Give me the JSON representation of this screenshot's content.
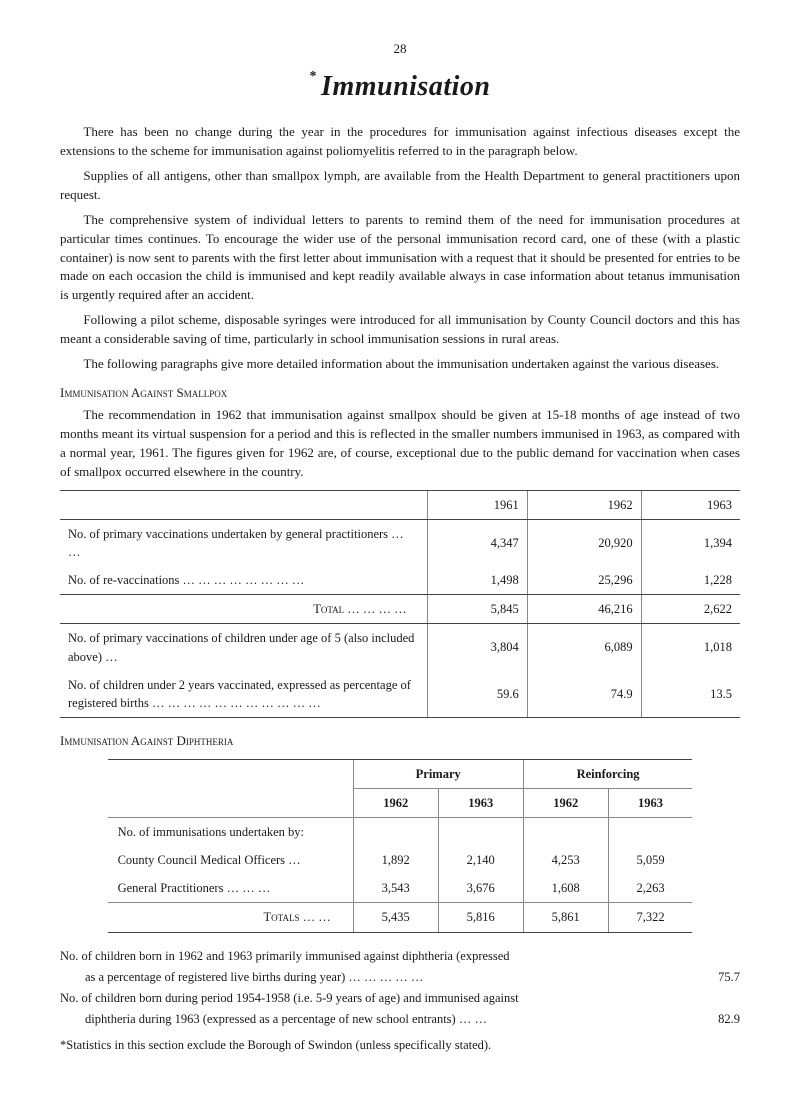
{
  "page_number": "28",
  "title_asterisk": "*",
  "title": "Immunisation",
  "paragraphs": {
    "p1": "There has been no change during the year in the procedures for immunisation against infectious diseases except the extensions to the scheme for immunisation against poliomyelitis referred to in the paragraph below.",
    "p2": "Supplies of all antigens, other than smallpox lymph, are available from the Health Department to general practitioners upon request.",
    "p3": "The comprehensive system of individual letters to parents to remind them of the need for immunisation procedures at particular times continues. To encourage the wider use of the personal immunisation record card, one of these (with a plastic container) is now sent to parents with the first letter about immunisation with a request that it should be presented for entries to be made on each occasion the child is immunised and kept readily available always in case information about tetanus immunisation is urgently required after an accident.",
    "p4": "Following a pilot scheme, disposable syringes were introduced for all immunisation by County Council doctors and this has meant a considerable saving of time, particularly in school immunisation sessions in rural areas.",
    "p5": "The following paragraphs give more detailed information about the immunisation undertaken against the various diseases."
  },
  "section1": {
    "heading": "Immunisation Against Smallpox",
    "body": "The recommendation in 1962 that immunisation against smallpox should be given at 15-18 months of age instead of two months meant its virtual suspension for a period and this is reflected in the smaller numbers immunised in 1963, as compared with a normal year, 1961. The figures given for 1962 are, of course, exceptional due to the public demand for vaccination when cases of smallpox occurred elsewhere in the country."
  },
  "table1": {
    "years": [
      "1961",
      "1962",
      "1963"
    ],
    "rows": [
      {
        "label": "No. of primary vaccinations undertaken by general practitioners     …   …",
        "v": [
          "4,347",
          "20,920",
          "1,394"
        ]
      },
      {
        "label": "No. of re-vaccinations          …    …    …    …    …    …    …    …",
        "v": [
          "1,498",
          "25,296",
          "1,228"
        ]
      }
    ],
    "total_label": "Total   …   …   …   …",
    "total": [
      "5,845",
      "46,216",
      "2,622"
    ],
    "rows2": [
      {
        "label": "No. of primary vaccinations of children under age of 5 (also included above) …",
        "v": [
          "3,804",
          "6,089",
          "1,018"
        ]
      },
      {
        "label": "No. of children under 2 years vaccinated, expressed as percentage of registered births …    …    …    …    …    …    …    …    …    …    …",
        "v": [
          "59.6",
          "74.9",
          "13.5"
        ]
      }
    ]
  },
  "section2": {
    "heading": "Immunisation Against Diphtheria"
  },
  "table2": {
    "group_headers": [
      "Primary",
      "Reinforcing"
    ],
    "years": [
      "1962",
      "1963",
      "1962",
      "1963"
    ],
    "rows": [
      {
        "label": "No. of immunisations undertaken by:",
        "v": [
          "",
          "",
          "",
          ""
        ]
      },
      {
        "label": "    County Council Medical Officers    …",
        "v": [
          "1,892",
          "2,140",
          "4,253",
          "5,059"
        ]
      },
      {
        "label": "    General Practitioners …    …    …",
        "v": [
          "3,543",
          "3,676",
          "1,608",
          "2,263"
        ]
      }
    ],
    "totals_label": "Totals    …    …",
    "totals": [
      "5,435",
      "5,816",
      "5,861",
      "7,322"
    ]
  },
  "footnotes": {
    "f1a": "No. of children born in 1962 and 1963 primarily immunised against diphtheria (expressed",
    "f1b": "as a percentage of registered live births during year)       …     …     …     …     …",
    "f1v": "75.7",
    "f2a": "No. of children born during period 1954-1958 (i.e. 5-9 years of age) and immunised against",
    "f2b": "diphtheria during 1963 (expressed as a percentage of new school entrants)     …     …",
    "f2v": "82.9",
    "final": "*Statistics in this section exclude the Borough of Swindon (unless specifically stated)."
  }
}
